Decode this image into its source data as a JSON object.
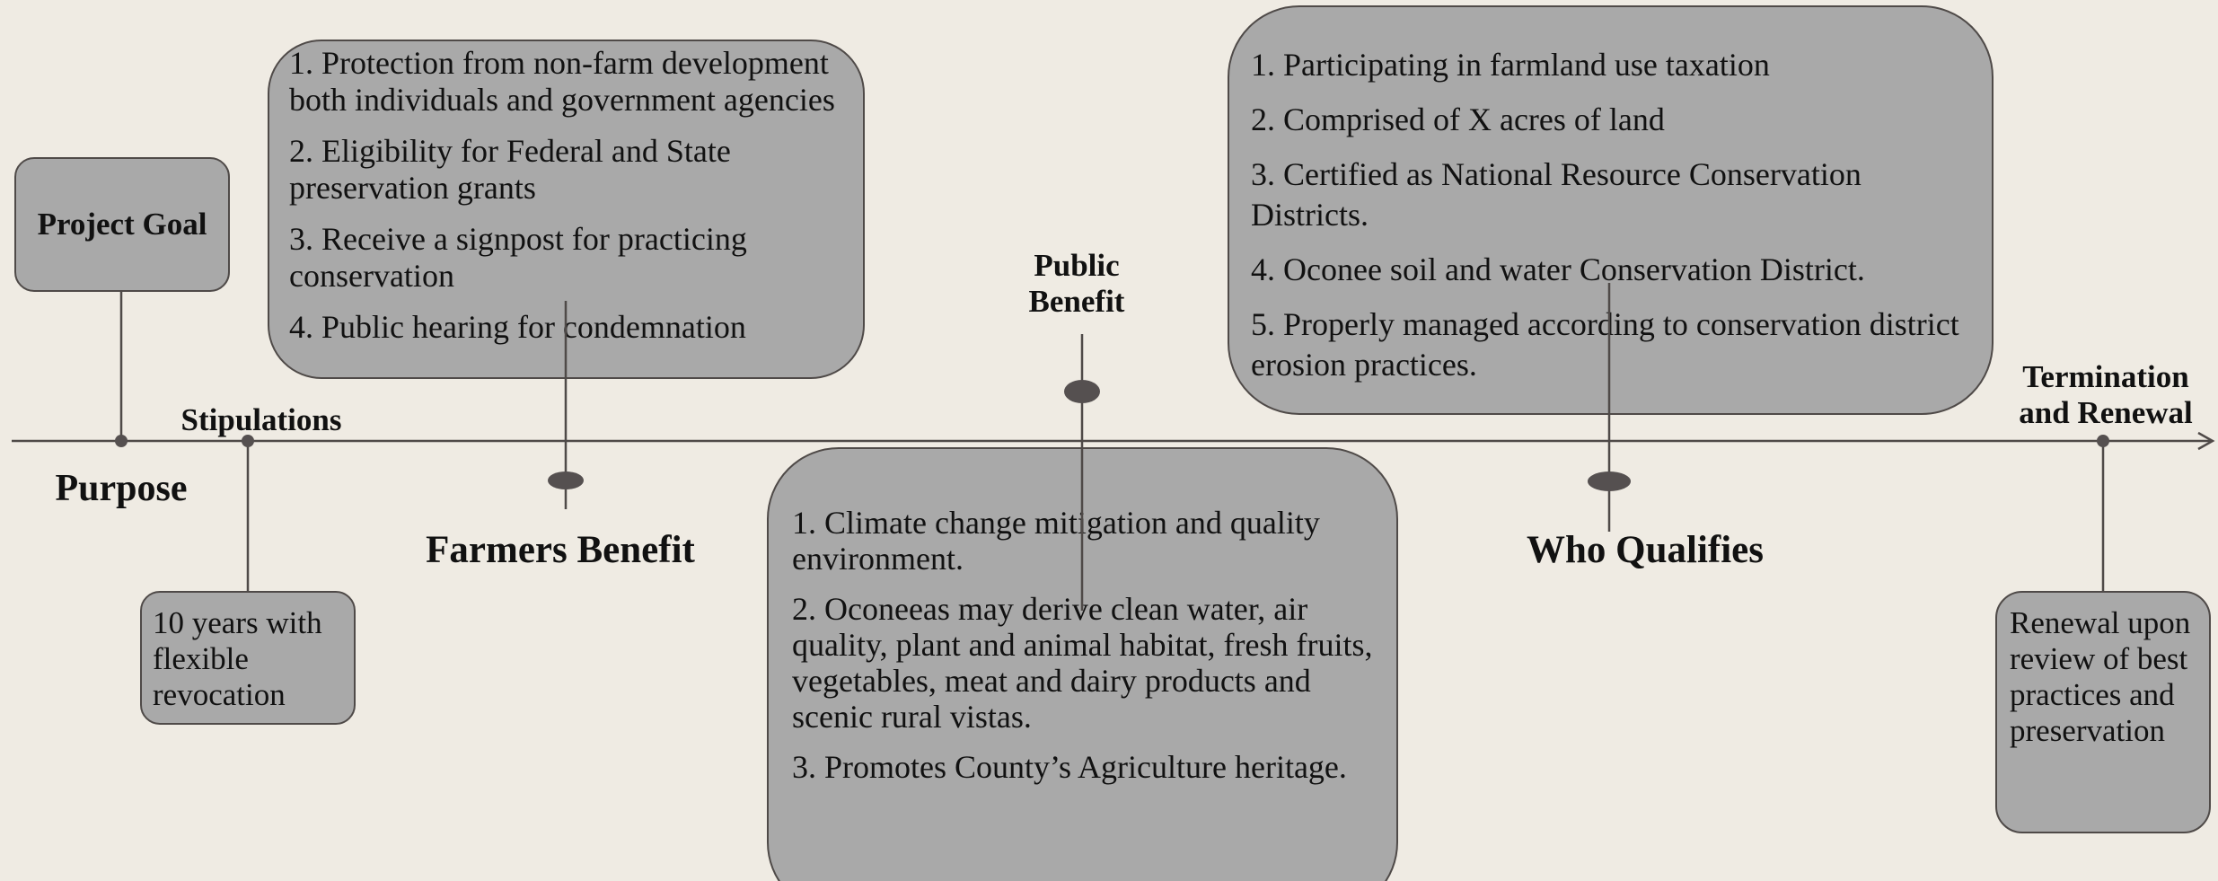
{
  "milestones": {
    "project_goal": "Project Goal",
    "purpose": "Purpose",
    "stipulations": "Stipulations",
    "farmers_benefit": "Farmers Benefit",
    "public_benefit": "Public Benefit",
    "who_qualifies": "Who Qualifies",
    "termination": "Termination and Renewal"
  },
  "stipulations_box": {
    "text": "10 years with flexible revocation"
  },
  "farmers_box": {
    "items": [
      "1. Protection from non-farm development both individuals and government agencies",
      "2. Eligibility for Federal and State preservation grants",
      "3. Receive a signpost for practicing conservation",
      "4. Public hearing for condemnation"
    ]
  },
  "public_box": {
    "items": [
      "1. Climate change mitigation and quality environment.",
      "2. Oconeeas may derive clean water, air quality, plant and animal habitat, fresh fruits, vegetables, meat and dairy products and scenic rural vistas.",
      "3. Promotes County’s Agriculture heritage."
    ]
  },
  "qualifies_box": {
    "items": [
      "1. Participating in farmland use taxation",
      "2. Comprised of X acres of land",
      "3. Certified as National Resource Conservation Districts.",
      "4. Oconee soil and water Conservation District.",
      "5. Properly managed according to conservation district erosion practices."
    ]
  },
  "renewal_box": {
    "text": "Renewal upon review of best practices and preservation"
  }
}
